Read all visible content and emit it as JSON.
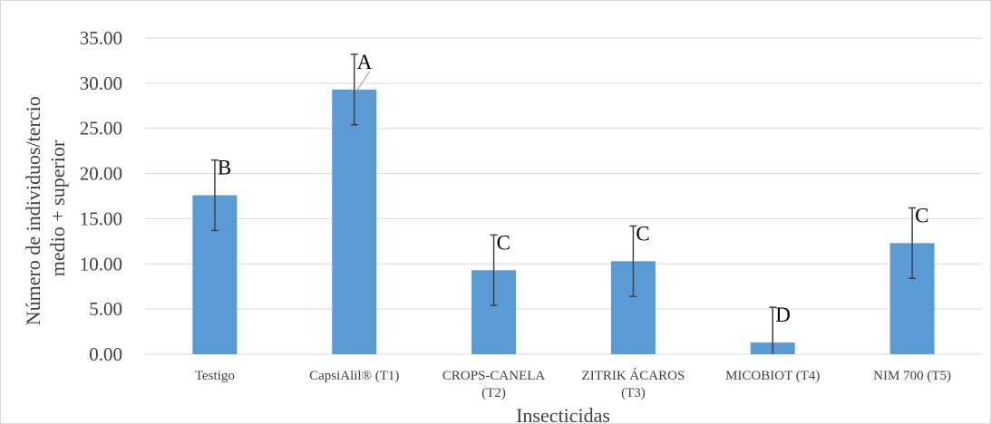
{
  "chart_data": {
    "type": "bar",
    "categories": [
      [
        "Testigo"
      ],
      [
        "CapsiAlil® (T1)"
      ],
      [
        "CROPS-CANELA",
        "(T2)"
      ],
      [
        "ZITRIK ÁCAROS",
        "(T3)"
      ],
      [
        "MICOBIOT (T4)"
      ],
      [
        "NIM 700 (T5)"
      ]
    ],
    "values": [
      17.6,
      29.3,
      9.3,
      10.3,
      1.3,
      12.3
    ],
    "error": [
      3.9,
      3.9,
      3.9,
      3.9,
      3.9,
      3.9
    ],
    "data_labels": [
      "B",
      "A",
      "C",
      "C",
      "D",
      "C"
    ],
    "xlabel": "Insecticidas",
    "ylabel_lines": [
      "Número de individuos/tercio",
      "medio + superior"
    ],
    "ylim": [
      0,
      35
    ],
    "ytick_values": [
      0,
      5,
      10,
      15,
      20,
      25,
      30,
      35
    ],
    "ytick_labels": [
      "0.00",
      "5.00",
      "10.00",
      "15.00",
      "20.00",
      "25.00",
      "30.00",
      "35.00"
    ],
    "grid": true,
    "bar_color": "#5b9bd5",
    "legend": "none"
  }
}
